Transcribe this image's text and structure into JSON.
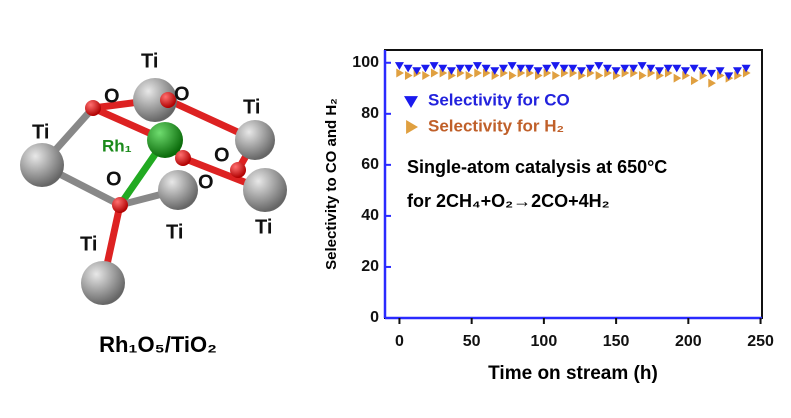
{
  "figure": {
    "labels": [
      "Ti",
      "O",
      "O",
      "Ti",
      "Ti",
      "Rh₁",
      "O",
      "O",
      "O",
      "Ti",
      "Ti",
      "Ti"
    ],
    "caption": "Rh₁O₅/TiO₂"
  },
  "chart_data": {
    "type": "scatter",
    "x_label": "Time on stream (h)",
    "y_label": "Selectivity to CO and H₂",
    "annotations": [
      "Single-atom catalysis at 650°C",
      "for 2CH₄+O₂→2CO+4H₂"
    ],
    "x": [
      0,
      6,
      12,
      18,
      24,
      30,
      36,
      42,
      48,
      54,
      60,
      66,
      72,
      78,
      84,
      90,
      96,
      102,
      108,
      114,
      120,
      126,
      132,
      138,
      144,
      150,
      156,
      162,
      168,
      174,
      180,
      186,
      192,
      198,
      204,
      210,
      216,
      222,
      228,
      234,
      240
    ],
    "series": [
      {
        "name": "Selectivity for CO",
        "color": "#1a1aee",
        "marker": "triangle-down",
        "values": [
          99,
          98,
          97,
          98,
          99,
          98,
          97,
          98,
          98,
          99,
          98,
          97,
          98,
          99,
          98,
          98,
          97,
          98,
          99,
          98,
          98,
          97,
          98,
          99,
          98,
          97,
          98,
          98,
          99,
          98,
          97,
          98,
          98,
          97,
          98,
          97,
          96,
          97,
          95,
          97,
          98
        ]
      },
      {
        "name": "Selectivity for H₂",
        "color": "#e0a040",
        "marker": "triangle-right",
        "values": [
          96,
          95,
          96,
          95,
          96,
          96,
          95,
          96,
          95,
          96,
          96,
          95,
          96,
          95,
          96,
          96,
          95,
          96,
          95,
          96,
          96,
          95,
          96,
          95,
          96,
          95,
          96,
          96,
          95,
          96,
          95,
          96,
          94,
          95,
          93,
          95,
          92,
          95,
          94,
          95,
          96
        ]
      }
    ],
    "xlim": [
      -10,
      251
    ],
    "ylim": [
      0,
      105
    ],
    "xticks": [
      0,
      50,
      100,
      150,
      200,
      250
    ],
    "yticks": [
      0,
      20,
      40,
      60,
      80,
      100
    ]
  }
}
